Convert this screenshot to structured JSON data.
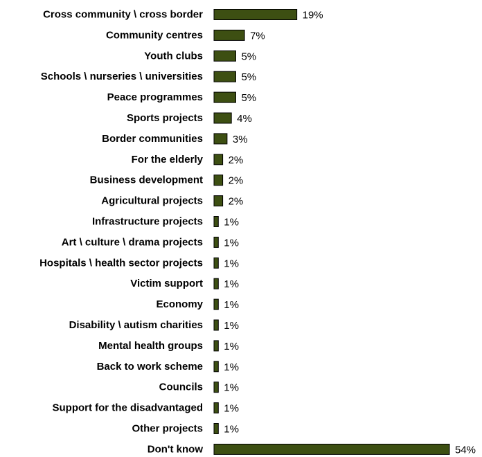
{
  "chart_data": {
    "type": "bar",
    "orientation": "horizontal",
    "title": "",
    "xlabel": "",
    "ylabel": "",
    "xlim": [
      0,
      54
    ],
    "grid": false,
    "legend": "none",
    "bar_color": "#3d4f12",
    "categories": [
      "Cross community \\ cross border",
      "Community centres",
      "Youth clubs",
      "Schools \\ nurseries \\ universities",
      "Peace programmes",
      "Sports projects",
      "Border communities",
      "For the elderly",
      "Business development",
      "Agricultural projects",
      "Infrastructure projects",
      "Art \\ culture \\ drama projects",
      "Hospitals \\ health sector projects",
      "Victim support",
      "Economy",
      "Disability \\ autism charities",
      "Mental health groups",
      "Back to work scheme",
      "Councils",
      "Support for the disadvantaged",
      "Other projects",
      "Don't know"
    ],
    "values": [
      19,
      7,
      5,
      5,
      5,
      4,
      3,
      2,
      2,
      2,
      1,
      1,
      1,
      1,
      1,
      1,
      1,
      1,
      1,
      1,
      1,
      54
    ],
    "value_labels": [
      "19%",
      "7%",
      "5%",
      "5%",
      "5%",
      "4%",
      "3%",
      "2%",
      "2%",
      "2%",
      "1%",
      "1%",
      "1%",
      "1%",
      "1%",
      "1%",
      "1%",
      "1%",
      "1%",
      "1%",
      "1%",
      "54%"
    ]
  }
}
